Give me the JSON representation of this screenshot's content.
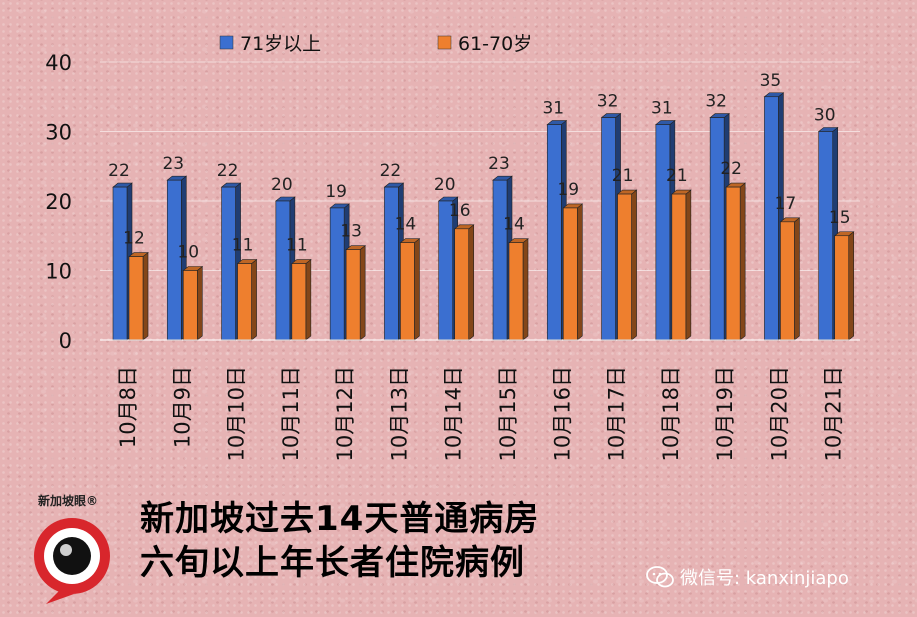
{
  "chart_data": {
    "type": "bar",
    "categories": [
      "10月8日",
      "10月9日",
      "10月10日",
      "10月11日",
      "10月12日",
      "10月13日",
      "10月14日",
      "10月15日",
      "10月16日",
      "10月17日",
      "10月18日",
      "10月19日",
      "10月20日",
      "10月21日"
    ],
    "series": [
      {
        "name": "71岁以上",
        "color": "#3b6fd0",
        "values": [
          22,
          23,
          22,
          20,
          19,
          22,
          20,
          23,
          31,
          32,
          31,
          32,
          35,
          30
        ]
      },
      {
        "name": "61-70岁",
        "color": "#ee7f2e",
        "values": [
          12,
          10,
          11,
          11,
          13,
          14,
          16,
          14,
          19,
          21,
          21,
          22,
          17,
          15
        ]
      }
    ],
    "ylim": [
      0,
      40
    ],
    "yticks": [
      0,
      10,
      20,
      30,
      40
    ],
    "grid": true,
    "legend": "top"
  },
  "title": {
    "line1": "新加坡过去14天普通病房",
    "line2": "六旬以上年长者住院病例"
  },
  "brand": {
    "name": "新加坡眼®"
  },
  "wechat": {
    "label": "微信号: kanxinjiapo"
  }
}
